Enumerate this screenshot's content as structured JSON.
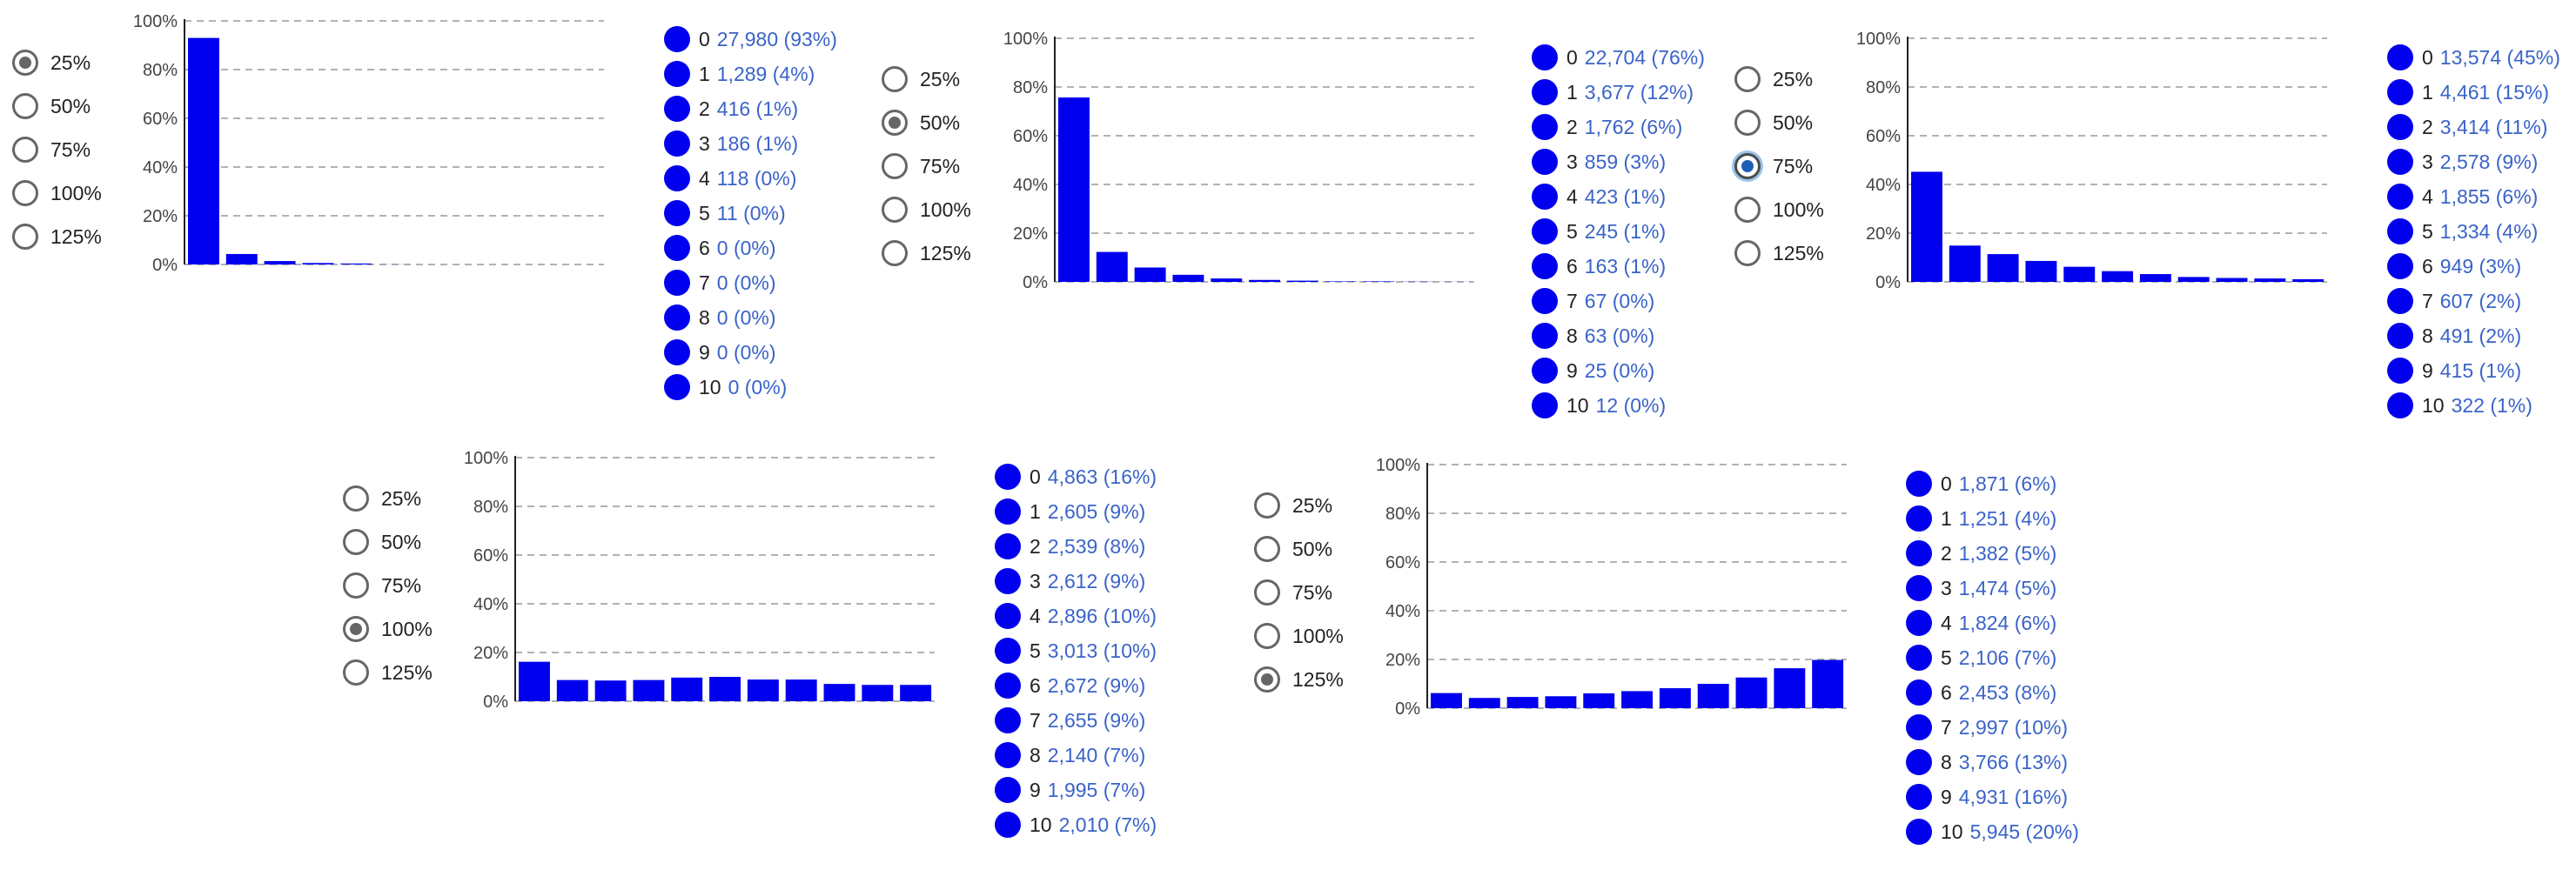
{
  "colors": {
    "bar": "#0000ee",
    "legend_dot": "#0000ee",
    "link_value": "#3a63c8",
    "grid": "#999999"
  },
  "radio_options": [
    "25%",
    "50%",
    "75%",
    "100%",
    "125%"
  ],
  "panels": [
    {
      "selected_option": "25%",
      "legend": [
        {
          "category": "0",
          "value": "27,980 (93%)"
        },
        {
          "category": "1",
          "value": "1,289 (4%)"
        },
        {
          "category": "2",
          "value": "416 (1%)"
        },
        {
          "category": "3",
          "value": "186 (1%)"
        },
        {
          "category": "4",
          "value": "118 (0%)"
        },
        {
          "category": "5",
          "value": "11 (0%)"
        },
        {
          "category": "6",
          "value": "0 (0%)"
        },
        {
          "category": "7",
          "value": "0 (0%)"
        },
        {
          "category": "8",
          "value": "0 (0%)"
        },
        {
          "category": "9",
          "value": "0 (0%)"
        },
        {
          "category": "10",
          "value": "0 (0%)"
        }
      ]
    },
    {
      "selected_option": "50%",
      "legend": [
        {
          "category": "0",
          "value": "22,704 (76%)"
        },
        {
          "category": "1",
          "value": "3,677 (12%)"
        },
        {
          "category": "2",
          "value": "1,762 (6%)"
        },
        {
          "category": "3",
          "value": "859 (3%)"
        },
        {
          "category": "4",
          "value": "423 (1%)"
        },
        {
          "category": "5",
          "value": "245 (1%)"
        },
        {
          "category": "6",
          "value": "163 (1%)"
        },
        {
          "category": "7",
          "value": "67 (0%)"
        },
        {
          "category": "8",
          "value": "63 (0%)"
        },
        {
          "category": "9",
          "value": "25 (0%)"
        },
        {
          "category": "10",
          "value": "12 (0%)"
        }
      ]
    },
    {
      "selected_option": "75%",
      "focused": true,
      "legend": [
        {
          "category": "0",
          "value": "13,574 (45%)"
        },
        {
          "category": "1",
          "value": "4,461 (15%)"
        },
        {
          "category": "2",
          "value": "3,414 (11%)"
        },
        {
          "category": "3",
          "value": "2,578 (9%)"
        },
        {
          "category": "4",
          "value": "1,855 (6%)"
        },
        {
          "category": "5",
          "value": "1,334 (4%)"
        },
        {
          "category": "6",
          "value": "949 (3%)"
        },
        {
          "category": "7",
          "value": "607 (2%)"
        },
        {
          "category": "8",
          "value": "491 (2%)"
        },
        {
          "category": "9",
          "value": "415 (1%)"
        },
        {
          "category": "10",
          "value": "322 (1%)"
        }
      ]
    },
    {
      "selected_option": "100%",
      "legend": [
        {
          "category": "0",
          "value": "4,863 (16%)"
        },
        {
          "category": "1",
          "value": "2,605 (9%)"
        },
        {
          "category": "2",
          "value": "2,539 (8%)"
        },
        {
          "category": "3",
          "value": "2,612 (9%)"
        },
        {
          "category": "4",
          "value": "2,896 (10%)"
        },
        {
          "category": "5",
          "value": "3,013 (10%)"
        },
        {
          "category": "6",
          "value": "2,672 (9%)"
        },
        {
          "category": "7",
          "value": "2,655 (9%)"
        },
        {
          "category": "8",
          "value": "2,140 (7%)"
        },
        {
          "category": "9",
          "value": "1,995 (7%)"
        },
        {
          "category": "10",
          "value": "2,010 (7%)"
        }
      ]
    },
    {
      "selected_option": "125%",
      "legend": [
        {
          "category": "0",
          "value": "1,871 (6%)"
        },
        {
          "category": "1",
          "value": "1,251 (4%)"
        },
        {
          "category": "2",
          "value": "1,382 (5%)"
        },
        {
          "category": "3",
          "value": "1,474 (5%)"
        },
        {
          "category": "4",
          "value": "1,824 (6%)"
        },
        {
          "category": "5",
          "value": "2,106 (7%)"
        },
        {
          "category": "6",
          "value": "2,453 (8%)"
        },
        {
          "category": "7",
          "value": "2,997 (10%)"
        },
        {
          "category": "8",
          "value": "3,766 (13%)"
        },
        {
          "category": "9",
          "value": "4,931 (16%)"
        },
        {
          "category": "10",
          "value": "5,945 (20%)"
        }
      ]
    }
  ],
  "chart_data": [
    {
      "type": "bar",
      "categories": [
        "0",
        "1",
        "2",
        "3",
        "4",
        "5",
        "6",
        "7",
        "8",
        "9",
        "10"
      ],
      "values": [
        0.93,
        0.043,
        0.014,
        0.006,
        0.004,
        0.0004,
        0,
        0,
        0,
        0,
        0
      ],
      "yticks": [
        "0%",
        "20%",
        "40%",
        "60%",
        "80%",
        "100%"
      ],
      "ylim": [
        0,
        1
      ],
      "grid": true
    },
    {
      "type": "bar",
      "categories": [
        "0",
        "1",
        "2",
        "3",
        "4",
        "5",
        "6",
        "7",
        "8",
        "9",
        "10"
      ],
      "values": [
        0.757,
        0.123,
        0.059,
        0.029,
        0.014,
        0.008,
        0.005,
        0.002,
        0.002,
        0.001,
        0.0004
      ],
      "yticks": [
        "0%",
        "20%",
        "40%",
        "60%",
        "80%",
        "100%"
      ],
      "ylim": [
        0,
        1
      ],
      "grid": true
    },
    {
      "type": "bar",
      "categories": [
        "0",
        "1",
        "2",
        "3",
        "4",
        "5",
        "6",
        "7",
        "8",
        "9",
        "10"
      ],
      "values": [
        0.452,
        0.149,
        0.114,
        0.086,
        0.062,
        0.044,
        0.032,
        0.02,
        0.016,
        0.014,
        0.011
      ],
      "yticks": [
        "0%",
        "20%",
        "40%",
        "60%",
        "80%",
        "100%"
      ],
      "ylim": [
        0,
        1
      ],
      "grid": true
    },
    {
      "type": "bar",
      "categories": [
        "0",
        "1",
        "2",
        "3",
        "4",
        "5",
        "6",
        "7",
        "8",
        "9",
        "10"
      ],
      "values": [
        0.162,
        0.087,
        0.085,
        0.087,
        0.097,
        0.1,
        0.089,
        0.089,
        0.071,
        0.067,
        0.067
      ],
      "yticks": [
        "0%",
        "20%",
        "40%",
        "60%",
        "80%",
        "100%"
      ],
      "ylim": [
        0,
        1
      ],
      "grid": true
    },
    {
      "type": "bar",
      "categories": [
        "0",
        "1",
        "2",
        "3",
        "4",
        "5",
        "6",
        "7",
        "8",
        "9",
        "10"
      ],
      "values": [
        0.062,
        0.042,
        0.046,
        0.049,
        0.061,
        0.07,
        0.082,
        0.1,
        0.126,
        0.164,
        0.198
      ],
      "yticks": [
        "0%",
        "20%",
        "40%",
        "60%",
        "80%",
        "100%"
      ],
      "ylim": [
        0,
        1
      ],
      "grid": true
    }
  ]
}
